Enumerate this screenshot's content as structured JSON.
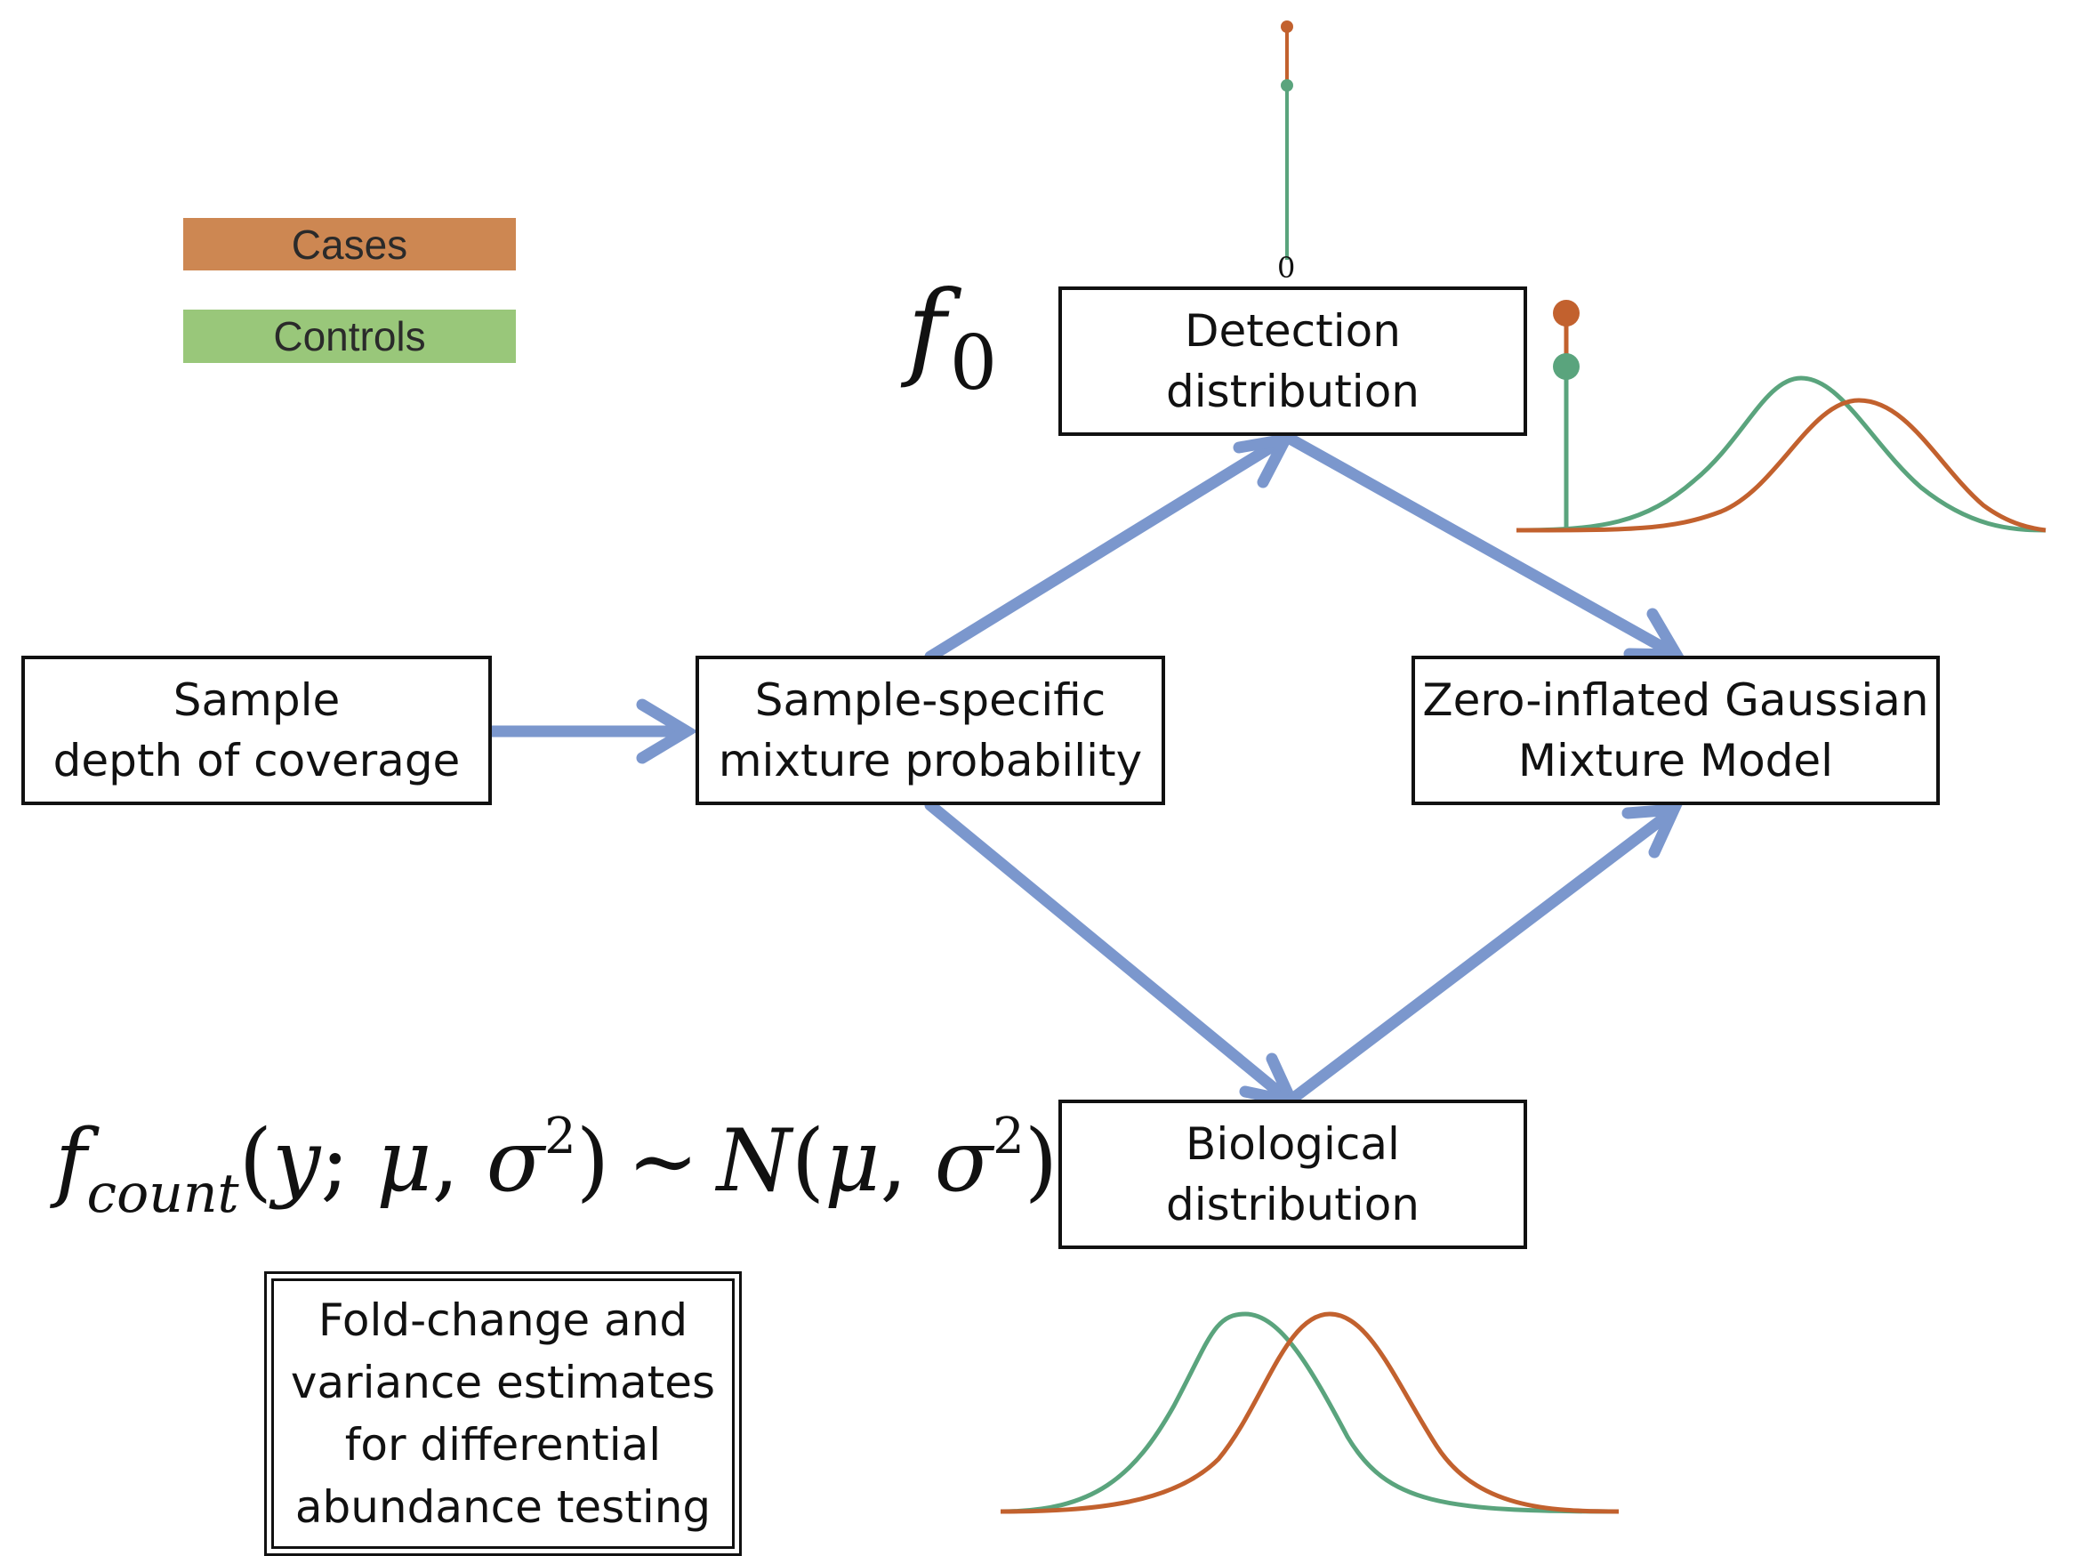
{
  "legend": [
    {
      "label": "Cases",
      "color": "#cd8752"
    },
    {
      "label": "Controls",
      "color": "#99c77a"
    }
  ],
  "nodes": {
    "detection": {
      "lines": [
        "Detection",
        "distribution"
      ]
    },
    "depth": {
      "lines": [
        "Sample",
        "depth of coverage"
      ]
    },
    "mixture_prob": {
      "lines": [
        "Sample-specific",
        "mixture probability"
      ]
    },
    "zigmm": {
      "lines": [
        "Zero-inflated Gaussian",
        "Mixture Model"
      ]
    },
    "biological": {
      "lines": [
        "Biological",
        "distribution"
      ]
    },
    "fold_change": {
      "lines": [
        "Fold-change and",
        "variance estimates",
        "for differential",
        "abundance testing"
      ]
    }
  },
  "formulas": {
    "f0": {
      "symbol": "f",
      "subscript": "0"
    },
    "count": {
      "f_symbol": "f",
      "f_subscript": "count",
      "open_paren": "(",
      "y": "y",
      "semicolon": "; ",
      "mu": "μ",
      "comma": ", ",
      "sigma": "σ",
      "power": "2",
      "close_paren": ")",
      "operator": "∼",
      "N": "N"
    }
  },
  "zero_tick": "0",
  "edges": [
    {
      "from": "depth",
      "to": "mixture_prob"
    },
    {
      "from": "mixture_prob",
      "to": "detection"
    },
    {
      "from": "mixture_prob",
      "to": "biological"
    },
    {
      "from": "detection",
      "to": "zigmm"
    },
    {
      "from": "biological",
      "to": "zigmm"
    }
  ],
  "colors": {
    "arrow": "#7b97cd",
    "cases_curve": "#c2612e",
    "controls_curve": "#5aa47d",
    "box_border": "#111111"
  }
}
